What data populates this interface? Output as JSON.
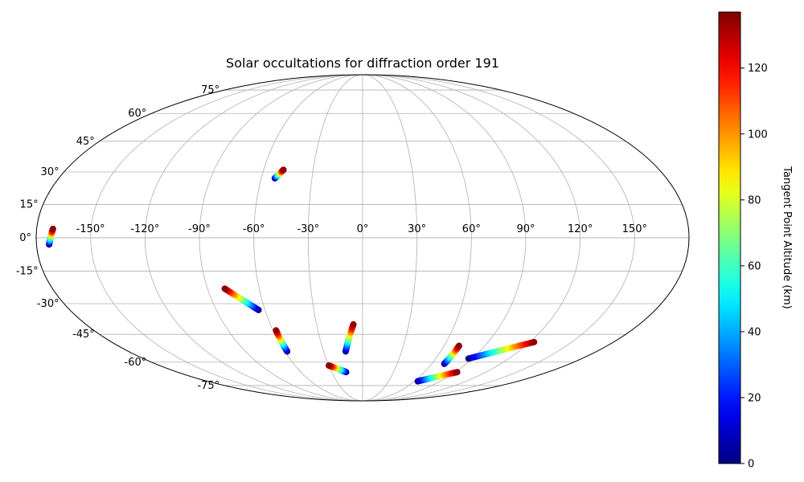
{
  "chart_data": {
    "type": "scatter",
    "projection": "mollweide",
    "title": "Solar occultations for diffraction order 191",
    "grid": true,
    "longitude_ticks": [
      -150,
      -120,
      -90,
      -60,
      -30,
      0,
      30,
      60,
      90,
      120,
      150
    ],
    "longitude_tick_labels": [
      "-150°",
      "-120°",
      "-90°",
      "-60°",
      "-30°",
      "0°",
      "30°",
      "60°",
      "90°",
      "120°",
      "150°"
    ],
    "latitude_ticks": [
      -75,
      -60,
      -45,
      -30,
      -15,
      0,
      15,
      30,
      45,
      60,
      75
    ],
    "latitude_tick_labels": [
      "-75°",
      "-60°",
      "-45°",
      "-30°",
      "-15°",
      "0°",
      "15°",
      "30°",
      "45°",
      "60°",
      "75°"
    ],
    "colorbar": {
      "label": "Tangent Point Altitude (km)",
      "colormap": "jet",
      "range": [
        0,
        137
      ],
      "ticks": [
        0,
        20,
        40,
        60,
        80,
        100,
        120
      ],
      "tick_labels": [
        "0",
        "20",
        "40",
        "60",
        "80",
        "100",
        "120"
      ]
    },
    "series": [
      {
        "start": {
          "lon": -173,
          "lat": -3,
          "alt": 0
        },
        "end": {
          "lon": -171,
          "lat": 4,
          "alt": 135
        }
      },
      {
        "start": {
          "lon": -52,
          "lat": 27,
          "alt": 0
        },
        "end": {
          "lon": -48,
          "lat": 31,
          "alt": 135
        }
      },
      {
        "start": {
          "lon": -64,
          "lat": -33,
          "alt": 0
        },
        "end": {
          "lon": -80,
          "lat": -23,
          "alt": 135
        }
      },
      {
        "start": {
          "lon": -58,
          "lat": -54,
          "alt": 0
        },
        "end": {
          "lon": -58,
          "lat": -43,
          "alt": 135
        }
      },
      {
        "start": {
          "lon": -13,
          "lat": -54,
          "alt": 0
        },
        "end": {
          "lon": -6,
          "lat": -40,
          "alt": 135
        }
      },
      {
        "start": {
          "lon": -16,
          "lat": -66,
          "alt": 0
        },
        "end": {
          "lon": -30,
          "lat": -62,
          "alt": 135
        }
      },
      {
        "start": {
          "lon": 71,
          "lat": -61,
          "alt": 0
        },
        "end": {
          "lon": 71,
          "lat": -51,
          "alt": 135
        }
      },
      {
        "start": {
          "lon": 64,
          "lat": -72,
          "alt": 0
        },
        "end": {
          "lon": 92,
          "lat": -66,
          "alt": 135
        }
      },
      {
        "start": {
          "lon": 87,
          "lat": -58,
          "alt": 0
        },
        "end": {
          "lon": 123,
          "lat": -49,
          "alt": 135
        }
      }
    ]
  }
}
